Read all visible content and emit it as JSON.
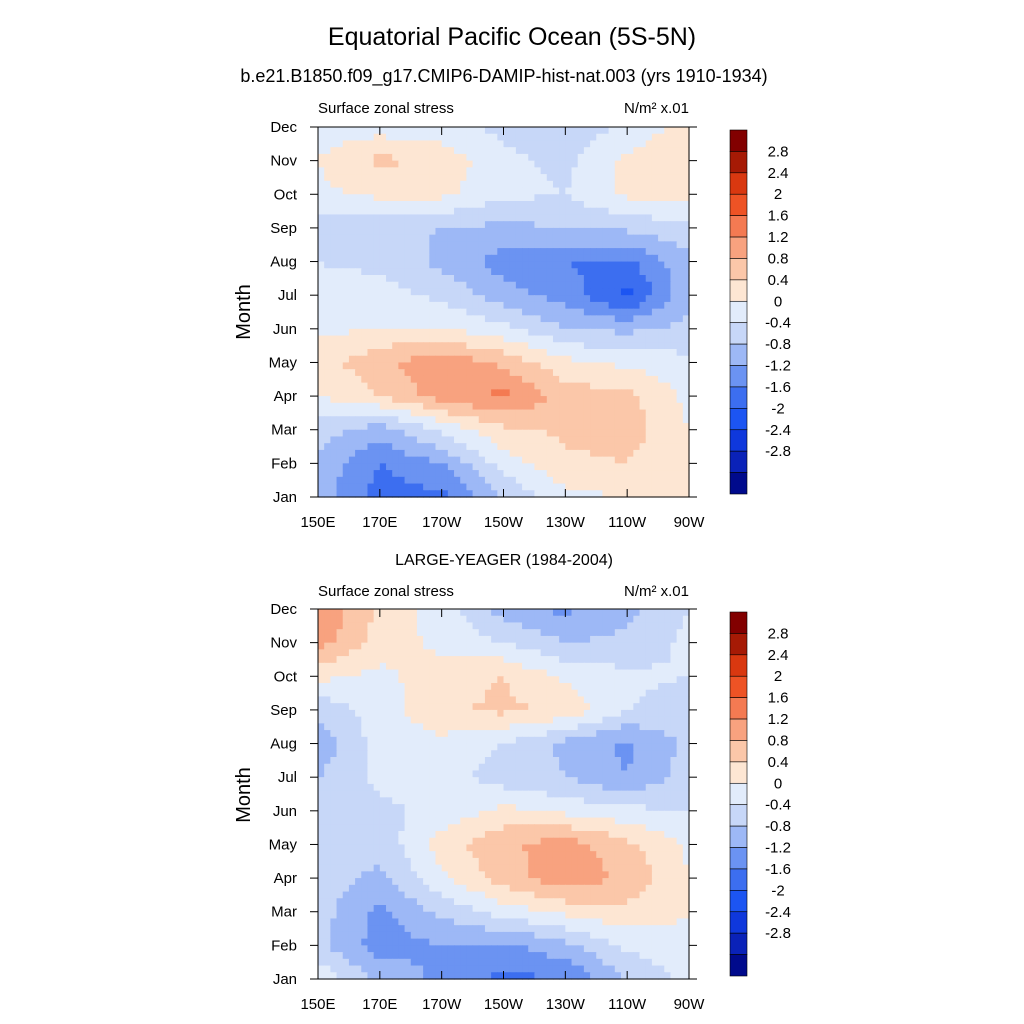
{
  "figure": {
    "title": "Equatorial Pacific Ocean (5S-5N)",
    "subtitle": "b.e21.B1850.f09_g17.CMIP6-DAMIP-hist-nat.003 (yrs 1910-1934)"
  },
  "chart_data": [
    {
      "type": "heatmap",
      "title": "",
      "left_label": "Surface zonal stress",
      "right_label": "N/m² x.01",
      "xlabel": "",
      "ylabel": "Month",
      "x_ticks": [
        "150E",
        "170E",
        "170W",
        "150W",
        "130W",
        "110W",
        "90W"
      ],
      "x_tick_lon": [
        150,
        170,
        190,
        210,
        230,
        250,
        270
      ],
      "xlim": [
        150,
        270
      ],
      "y_ticks": [
        "Jan",
        "Feb",
        "Mar",
        "Apr",
        "May",
        "Jun",
        "Jul",
        "Aug",
        "Sep",
        "Oct",
        "Nov",
        "Dec"
      ],
      "ylim": [
        1,
        12
      ],
      "colorbar_labels": [
        "2.8",
        "2.4",
        "2",
        "1.6",
        "1.2",
        "0.8",
        "0.4",
        "0",
        "-0.4",
        "-0.8",
        "-1.2",
        "-1.6",
        "-2",
        "-2.4",
        "-2.8"
      ],
      "lon": [
        150,
        170,
        190,
        210,
        230,
        250,
        270
      ],
      "months": [
        1,
        2,
        3,
        4,
        5,
        6,
        7,
        8,
        9,
        10,
        11,
        12
      ],
      "values": [
        [
          -0.6,
          -1.4,
          -1.3,
          -0.4,
          0.3,
          0.4,
          0.4
        ],
        [
          -0.5,
          -1.2,
          -0.8,
          0.2,
          0.7,
          0.8,
          0.4
        ],
        [
          -0.2,
          -0.6,
          0.1,
          0.7,
          0.9,
          1.0,
          0.4
        ],
        [
          0.4,
          0.8,
          1.4,
          1.7,
          1.0,
          0.9,
          0.3
        ],
        [
          0.6,
          1.1,
          1.5,
          1.1,
          0.5,
          0.3,
          0.1
        ],
        [
          0.3,
          0.4,
          0.4,
          0.1,
          -0.4,
          -0.5,
          -0.3
        ],
        [
          0.1,
          0.2,
          -0.1,
          -0.6,
          -1.0,
          -1.7,
          -0.5
        ],
        [
          0.0,
          -0.1,
          -0.5,
          -1.0,
          -1.2,
          -1.3,
          -0.5
        ],
        [
          -0.2,
          -0.3,
          -0.4,
          -0.5,
          -0.4,
          -0.3,
          -0.1
        ],
        [
          0.3,
          0.5,
          0.5,
          0.1,
          0.0,
          0.5,
          0.6
        ],
        [
          0.4,
          0.9,
          0.7,
          0.1,
          -0.1,
          0.5,
          0.7
        ],
        [
          0.2,
          0.2,
          0.1,
          -0.1,
          -0.3,
          0.1,
          0.6
        ]
      ]
    },
    {
      "type": "heatmap",
      "title": "LARGE-YEAGER (1984-2004)",
      "left_label": "Surface zonal stress",
      "right_label": "N/m² x.01",
      "xlabel": "",
      "ylabel": "Month",
      "x_ticks": [
        "150E",
        "170E",
        "170W",
        "150W",
        "130W",
        "110W",
        "90W"
      ],
      "x_tick_lon": [
        150,
        170,
        190,
        210,
        230,
        250,
        270
      ],
      "xlim": [
        150,
        270
      ],
      "y_ticks": [
        "Jan",
        "Feb",
        "Mar",
        "Apr",
        "May",
        "Jun",
        "Jul",
        "Aug",
        "Sep",
        "Oct",
        "Nov",
        "Dec"
      ],
      "ylim": [
        1,
        12
      ],
      "colorbar_labels": [
        "2.8",
        "2.4",
        "2",
        "1.6",
        "1.2",
        "0.8",
        "0.4",
        "0",
        "-0.4",
        "-0.8",
        "-1.2",
        "-1.6",
        "-2",
        "-2.4",
        "-2.8"
      ],
      "lon": [
        150,
        170,
        190,
        210,
        230,
        250,
        270
      ],
      "months": [
        1,
        2,
        3,
        4,
        5,
        6,
        7,
        8,
        9,
        10,
        11,
        12
      ],
      "values": [
        [
          0.3,
          -0.5,
          -0.9,
          -1.3,
          -1.2,
          -0.4,
          0.1
        ],
        [
          -0.3,
          -1.0,
          -0.8,
          -0.9,
          -0.5,
          0.1,
          0.3
        ],
        [
          -0.2,
          -0.9,
          -0.3,
          0.2,
          0.5,
          0.7,
          0.4
        ],
        [
          -0.2,
          -0.5,
          0.3,
          1.0,
          1.5,
          1.1,
          0.4
        ],
        [
          -0.1,
          -0.3,
          0.6,
          1.1,
          1.4,
          0.9,
          0.3
        ],
        [
          -0.2,
          -0.1,
          0.1,
          0.5,
          0.3,
          0.1,
          0.0
        ],
        [
          -0.4,
          0.1,
          0.2,
          -0.2,
          -0.4,
          -0.8,
          -0.2
        ],
        [
          -0.7,
          0.2,
          0.3,
          0.0,
          -0.5,
          -0.9,
          -0.3
        ],
        [
          -0.3,
          0.2,
          0.7,
          0.9,
          0.7,
          0.0,
          -0.2
        ],
        [
          0.5,
          0.3,
          0.6,
          0.8,
          0.3,
          0.1,
          0.0
        ],
        [
          1.4,
          0.6,
          0.3,
          0.0,
          -0.4,
          -0.3,
          0.1
        ],
        [
          1.6,
          0.7,
          0.2,
          -0.6,
          -0.9,
          -0.5,
          0.0
        ]
      ]
    }
  ],
  "colors": {
    "levels": [
      -2.8,
      -2.4,
      -2.0,
      -1.6,
      -1.2,
      -0.8,
      -0.4,
      0.0,
      0.4,
      0.8,
      1.2,
      1.6,
      2.0,
      2.4,
      2.8
    ],
    "scale": [
      "#000a8c",
      "#0a22b8",
      "#0f38dc",
      "#1c55f2",
      "#3c6ef0",
      "#6b93f2",
      "#9db8f6",
      "#c7d7f8",
      "#e2ecfb",
      "#fde6d3",
      "#fbc7a9",
      "#f8a27f",
      "#f47a52",
      "#ee5325",
      "#d93810",
      "#a61a05",
      "#820000"
    ]
  }
}
